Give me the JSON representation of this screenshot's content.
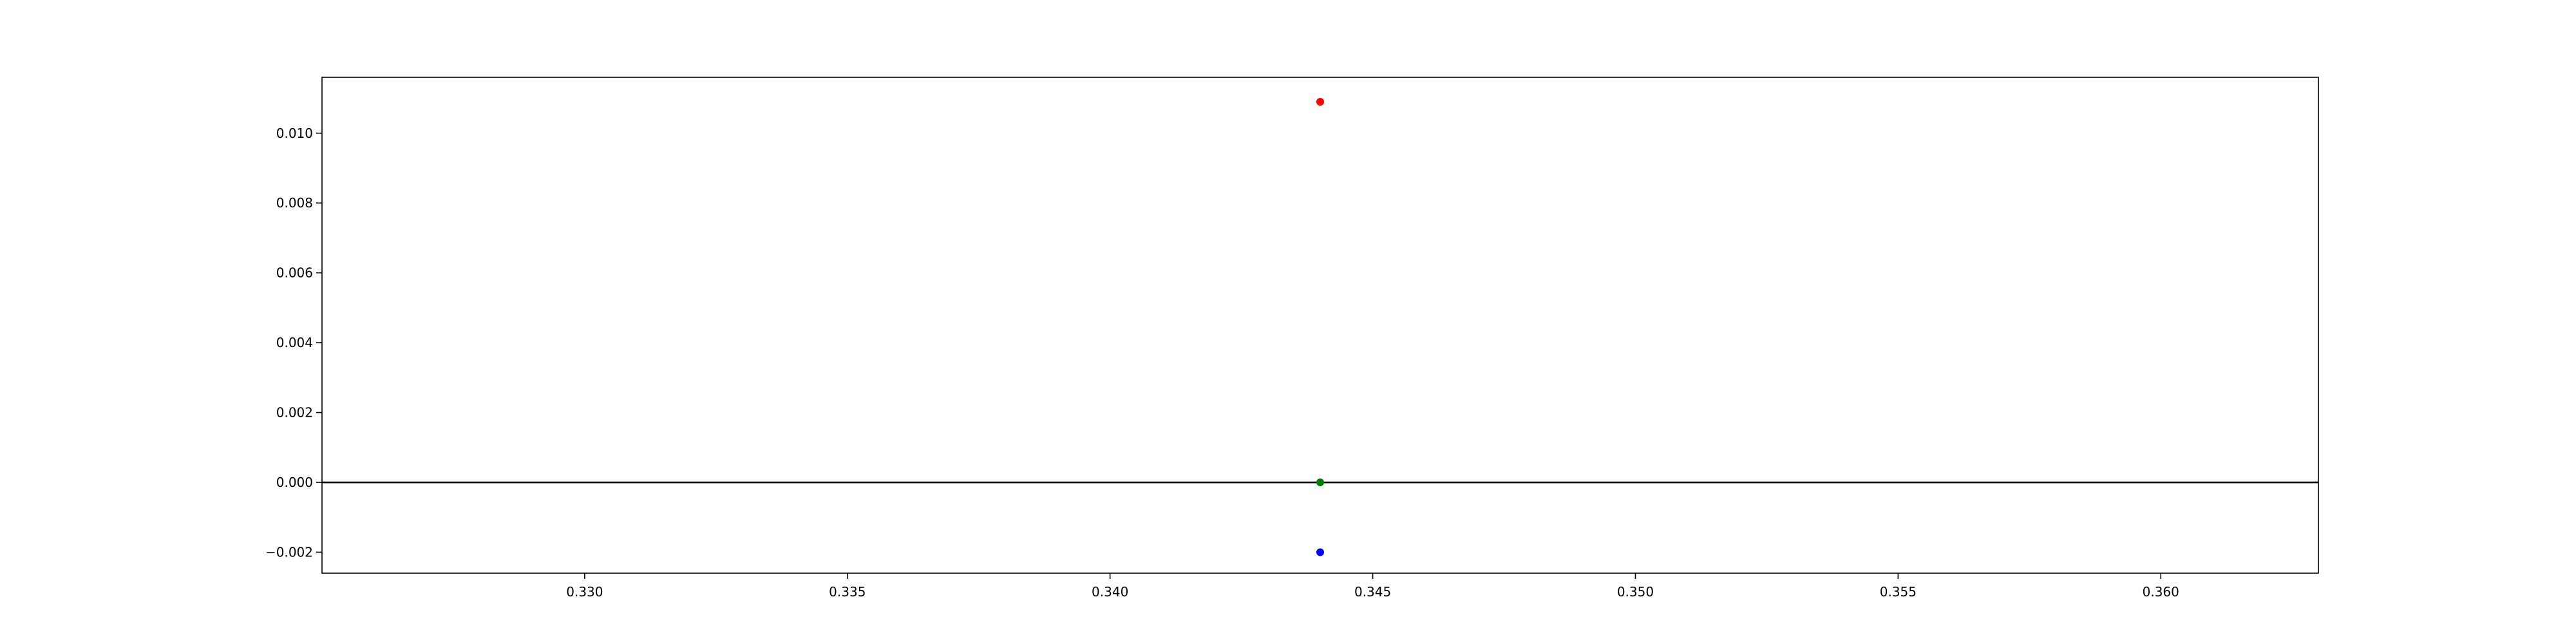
{
  "chart_data": {
    "type": "scatter",
    "title": "",
    "xlabel": "",
    "ylabel": "",
    "xlim": [
      0.325,
      0.363
    ],
    "ylim": [
      -0.0026,
      0.0116
    ],
    "grid": false,
    "x_ticks": [
      0.33,
      0.335,
      0.34,
      0.345,
      0.35,
      0.355,
      0.36
    ],
    "x_tick_labels": [
      "0.330",
      "0.335",
      "0.340",
      "0.345",
      "0.350",
      "0.355",
      "0.360"
    ],
    "y_ticks": [
      -0.002,
      0.0,
      0.002,
      0.004,
      0.006,
      0.008,
      0.01
    ],
    "y_tick_labels": [
      "−0.002",
      "0.000",
      "0.002",
      "0.004",
      "0.006",
      "0.008",
      "0.010"
    ],
    "reference_lines": [
      {
        "orientation": "horizontal",
        "y": 0.0,
        "color": "#000000"
      }
    ],
    "series": [
      {
        "color": "#ff0000",
        "points": [
          {
            "x": 0.344,
            "y": 0.0109
          }
        ]
      },
      {
        "color": "#008000",
        "points": [
          {
            "x": 0.344,
            "y": 0.0
          }
        ]
      },
      {
        "color": "#0000ff",
        "points": [
          {
            "x": 0.344,
            "y": -0.002
          }
        ]
      }
    ]
  }
}
